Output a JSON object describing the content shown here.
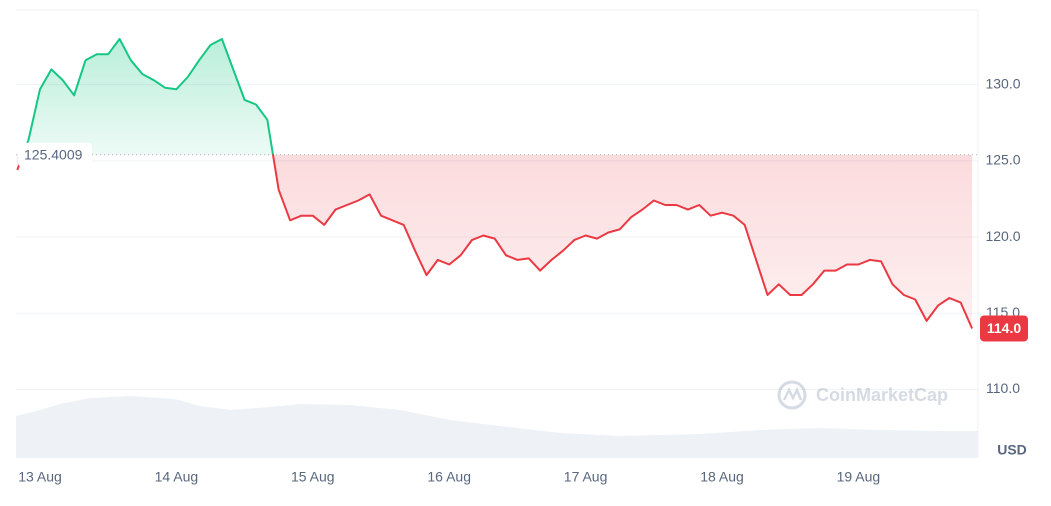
{
  "chart_data": {
    "type": "line",
    "categories": [
      null,
      null,
      "13 Aug",
      null,
      null,
      null,
      null,
      null,
      null,
      null,
      null,
      null,
      null,
      null,
      "14 Aug",
      null,
      null,
      null,
      null,
      null,
      null,
      null,
      null,
      null,
      null,
      null,
      "15 Aug",
      null,
      null,
      null,
      null,
      null,
      null,
      null,
      null,
      null,
      null,
      null,
      "16 Aug",
      null,
      null,
      null,
      null,
      null,
      null,
      null,
      null,
      null,
      null,
      null,
      "17 Aug",
      null,
      null,
      null,
      null,
      null,
      null,
      null,
      null,
      null,
      null,
      null,
      "18 Aug",
      null,
      null,
      null,
      null,
      null,
      null,
      null,
      null,
      null,
      null,
      null,
      "19 Aug",
      null,
      null,
      null,
      null,
      null,
      null,
      null,
      null,
      null,
      null
    ],
    "values": [
      124.4,
      126.4,
      129.7,
      131.0,
      130.3,
      129.3,
      131.6,
      132.0,
      132.0,
      133.0,
      131.6,
      130.7,
      130.3,
      129.8,
      129.7,
      130.5,
      131.6,
      132.6,
      133.0,
      131.0,
      129.0,
      128.7,
      127.7,
      123.1,
      121.1,
      121.4,
      121.4,
      120.8,
      121.8,
      122.1,
      122.4,
      122.8,
      121.4,
      121.1,
      120.8,
      119.1,
      117.5,
      118.5,
      118.2,
      118.8,
      119.8,
      120.1,
      119.9,
      118.8,
      118.5,
      118.6,
      117.8,
      118.5,
      119.1,
      119.8,
      120.1,
      119.9,
      120.3,
      120.5,
      121.3,
      121.8,
      122.4,
      122.1,
      122.1,
      121.8,
      122.1,
      121.4,
      121.6,
      121.4,
      120.8,
      118.5,
      116.2,
      116.9,
      116.2,
      116.2,
      116.9,
      117.8,
      117.8,
      118.2,
      118.2,
      118.5,
      118.4,
      116.9,
      116.2,
      115.9,
      114.5,
      115.5,
      116.0,
      115.7,
      114.0
    ],
    "baseline": 125.4009,
    "current_price": {
      "value": 114.0,
      "label": "114.0"
    },
    "up_color": "#16c784",
    "down_color": "#ea3943",
    "ylim": [
      105.5,
      134.9
    ],
    "yticks": [
      {
        "value": 110,
        "label": "110.0"
      },
      {
        "value": 115,
        "label": "115.0"
      },
      {
        "value": 120,
        "label": "120.0"
      },
      {
        "value": 125,
        "label": "125.0"
      },
      {
        "value": 130,
        "label": "130.0"
      }
    ],
    "grid": true,
    "currency": "USD",
    "watermark": "CoinMarketCap"
  }
}
